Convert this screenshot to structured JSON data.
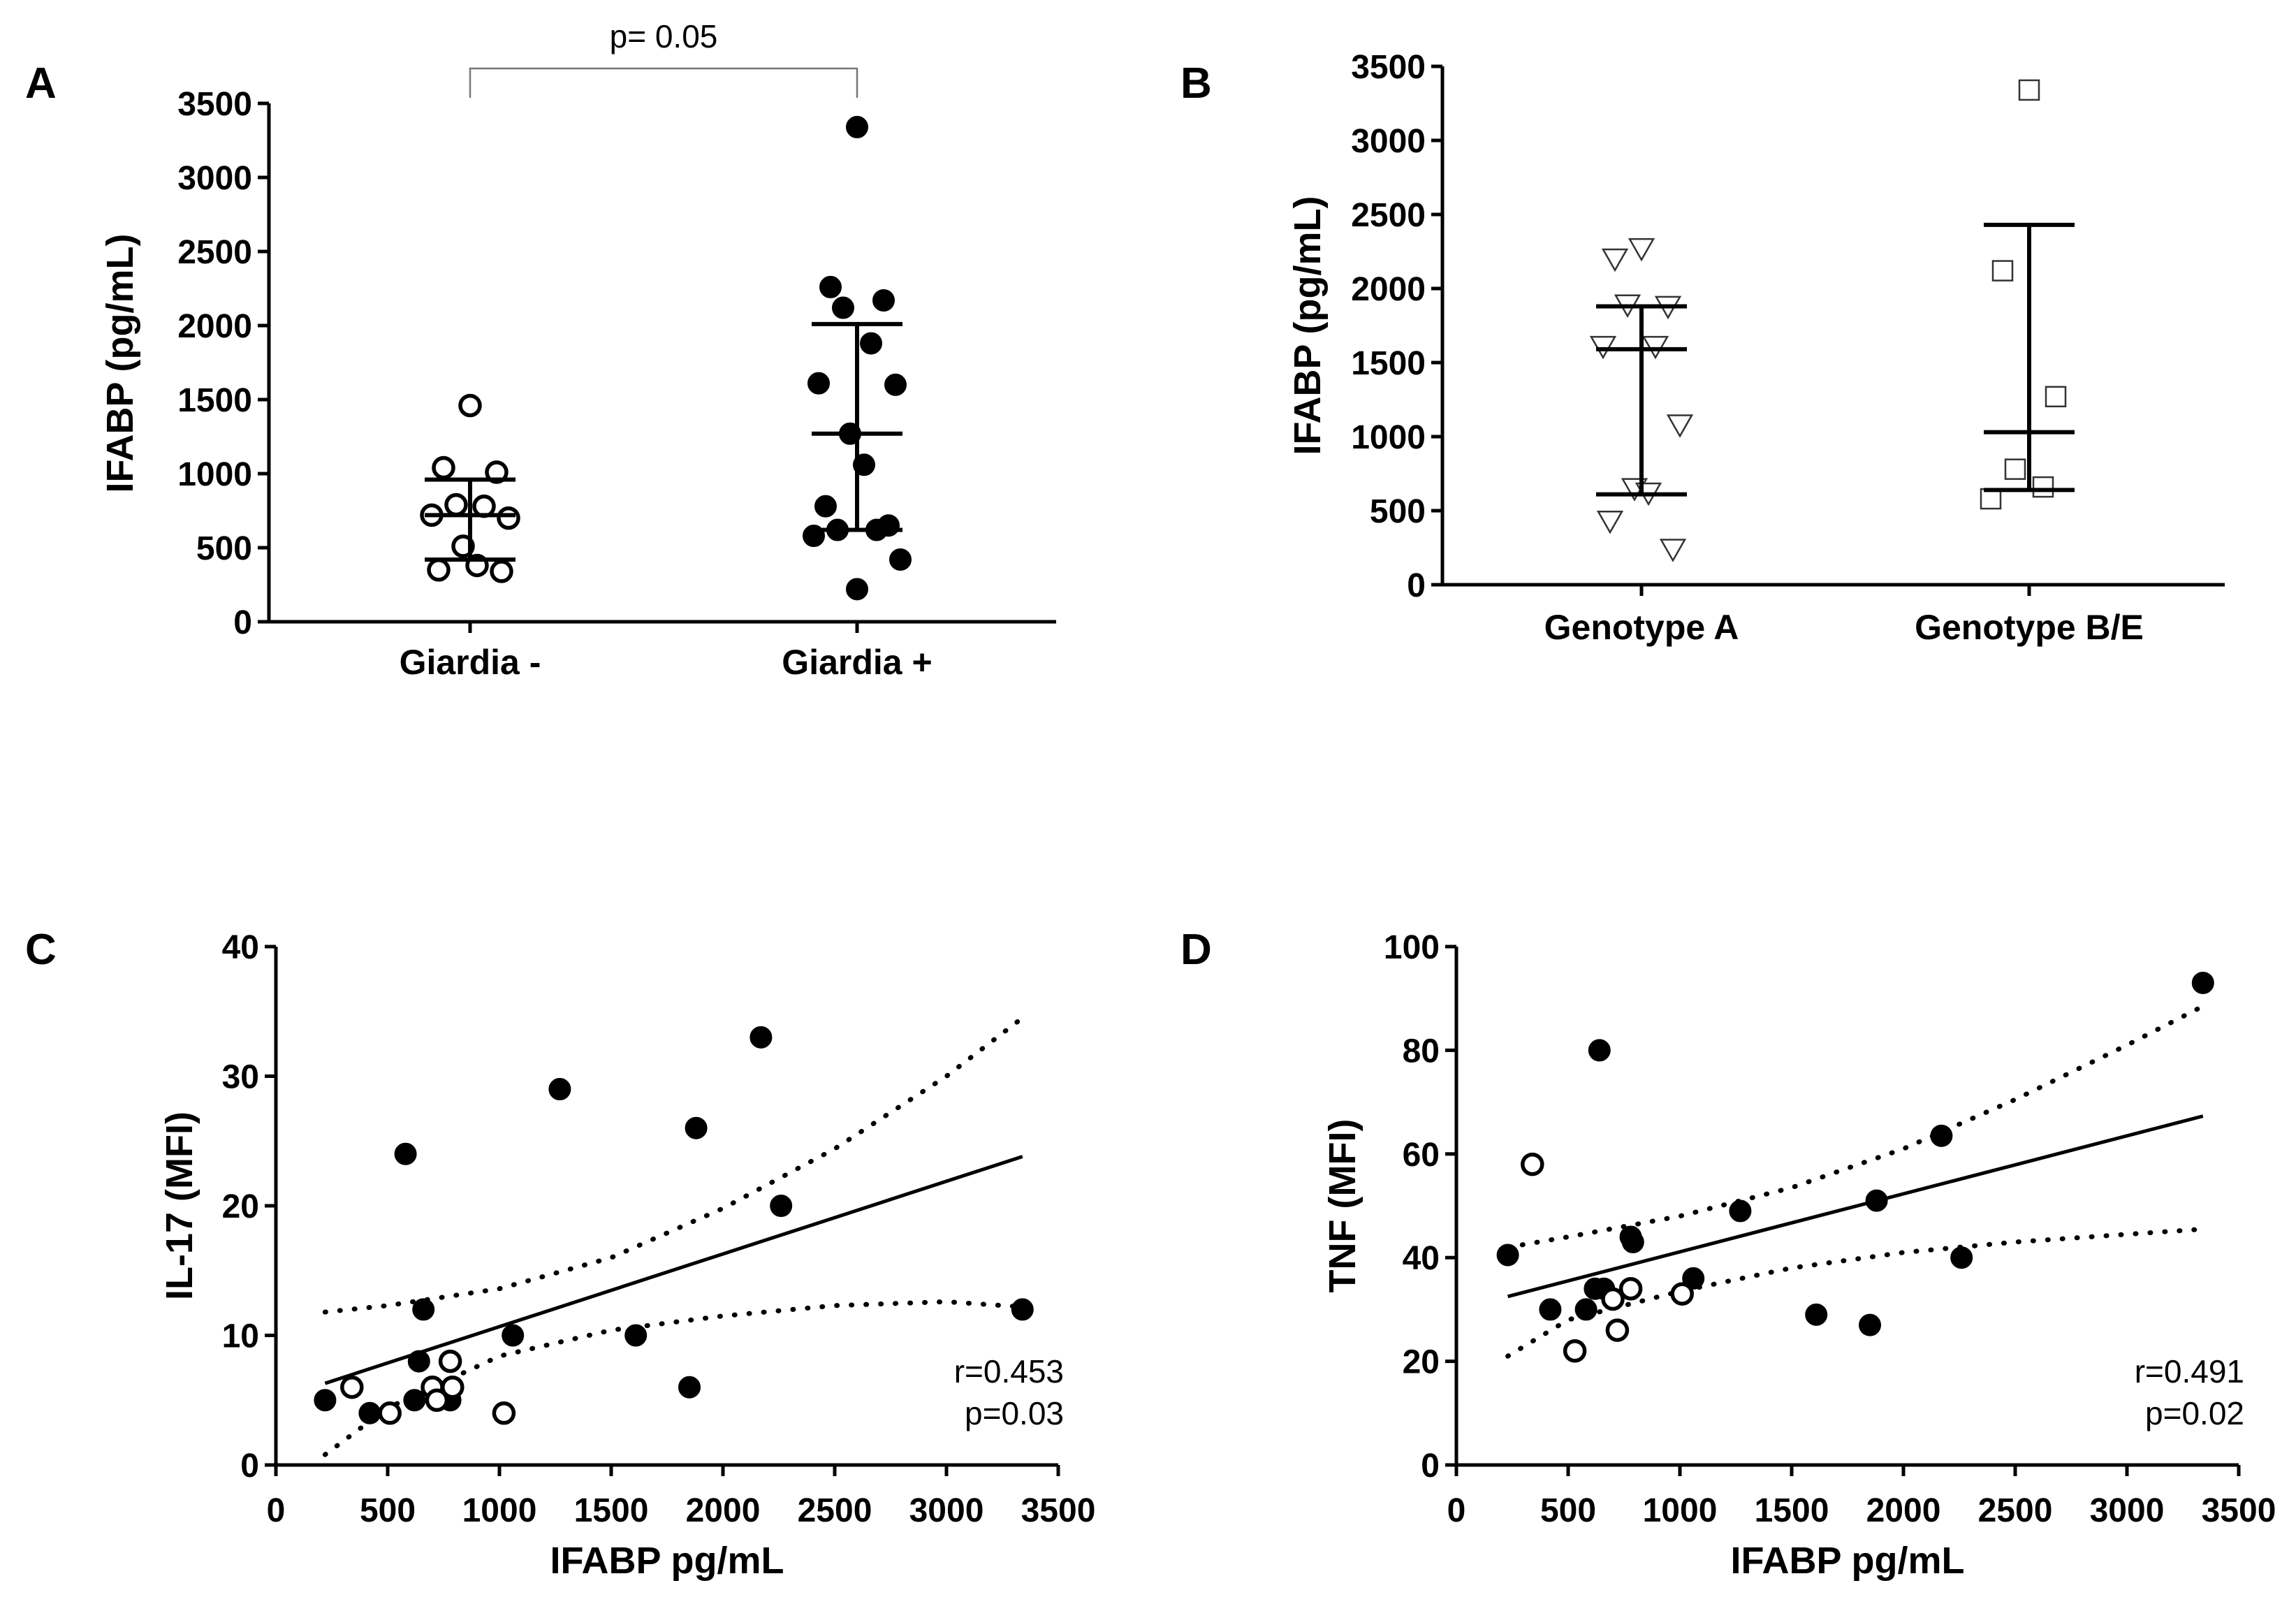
{
  "chart_data": [
    {
      "id": "A",
      "panel_label": "A",
      "type": "scatter",
      "subtype": "dot-plot",
      "ylabel": "IFABP (pg/mL)",
      "ylim": [
        0,
        3500
      ],
      "yticks": [
        "0",
        "500",
        "1000",
        "1500",
        "2000",
        "2500",
        "3000",
        "3500"
      ],
      "categories": [
        "Giardia -",
        "Giardia +"
      ],
      "significance": {
        "text": "p= 0.05",
        "between": [
          "Giardia -",
          "Giardia +"
        ]
      },
      "groups": [
        {
          "name": "Giardia -",
          "marker": "open-circle",
          "values": [
            1460,
            1040,
            1010,
            790,
            780,
            720,
            700,
            510,
            380,
            350,
            340
          ],
          "median": 720,
          "iqr": [
            420,
            960
          ]
        },
        {
          "name": "Giardia +",
          "marker": "filled-circle",
          "values": [
            3340,
            2260,
            2170,
            2120,
            1880,
            1610,
            1600,
            1270,
            1060,
            780,
            650,
            620,
            620,
            580,
            420,
            220
          ],
          "median": 1270,
          "iqr": [
            620,
            2010
          ]
        }
      ]
    },
    {
      "id": "B",
      "panel_label": "B",
      "type": "scatter",
      "subtype": "dot-plot",
      "ylabel": "IFABP (pg/mL)",
      "ylim": [
        0,
        3500
      ],
      "yticks": [
        "0",
        "500",
        "1000",
        "1500",
        "2000",
        "2500",
        "3000",
        "3500"
      ],
      "categories": [
        "Genotype A",
        "Genotype  B/E"
      ],
      "groups": [
        {
          "name": "Genotype A",
          "marker": "open-triangle-down",
          "values": [
            2270,
            2200,
            1880,
            1890,
            1610,
            1610,
            1080,
            650,
            620,
            430,
            240
          ],
          "median": 1590,
          "iqr": [
            610,
            1880
          ]
        },
        {
          "name": "Genotype  B/E",
          "marker": "open-square",
          "values": [
            3340,
            2120,
            1270,
            780,
            660,
            580
          ],
          "median": 1030,
          "iqr": [
            640,
            2430
          ]
        }
      ]
    },
    {
      "id": "C",
      "panel_label": "C",
      "type": "scatter",
      "xlabel": "IFABP pg/mL",
      "ylabel": "IL-17 (MFI)",
      "xlim": [
        0,
        3500
      ],
      "ylim": [
        0,
        40
      ],
      "xticks": [
        "0",
        "500",
        "1000",
        "1500",
        "2000",
        "2500",
        "3000",
        "3500"
      ],
      "yticks": [
        "0",
        "10",
        "20",
        "30",
        "40"
      ],
      "stats": {
        "r": "r=0.453",
        "p": "p=0.03"
      },
      "series": [
        {
          "name": "Giardia +",
          "marker": "filled-circle",
          "points": [
            [
              220,
              5
            ],
            [
              420,
              4
            ],
            [
              580,
              24
            ],
            [
              620,
              5
            ],
            [
              640,
              8
            ],
            [
              660,
              12
            ],
            [
              780,
              5
            ],
            [
              1060,
              10
            ],
            [
              1270,
              29
            ],
            [
              1610,
              10
            ],
            [
              1850,
              6
            ],
            [
              1880,
              26
            ],
            [
              2170,
              33
            ],
            [
              2260,
              20
            ],
            [
              3340,
              12
            ]
          ]
        },
        {
          "name": "Giardia -",
          "marker": "open-circle",
          "points": [
            [
              340,
              6
            ],
            [
              510,
              4
            ],
            [
              700,
              6
            ],
            [
              720,
              5
            ],
            [
              780,
              8
            ],
            [
              790,
              6
            ],
            [
              1020,
              4
            ]
          ]
        }
      ],
      "regression": {
        "x": [
          220,
          3340
        ],
        "y": [
          6.3,
          23.8
        ]
      },
      "ci_upper": {
        "x": [
          220,
          500,
          1000,
          1500,
          2000,
          2500,
          3000,
          3340
        ],
        "y": [
          11.8,
          12.3,
          13.6,
          16.0,
          19.8,
          24.4,
          30.0,
          34.5
        ]
      },
      "ci_lower": {
        "x": [
          220,
          500,
          1000,
          1500,
          2000,
          2500,
          3000,
          3340
        ],
        "y": [
          0.8,
          4.4,
          8.4,
          10.4,
          11.5,
          12.3,
          12.6,
          12.2
        ]
      }
    },
    {
      "id": "D",
      "panel_label": "D",
      "type": "scatter",
      "xlabel": "IFABP pg/mL",
      "ylabel": "TNF (MFI)",
      "xlim": [
        0,
        3500
      ],
      "ylim": [
        0,
        100
      ],
      "xticks": [
        "0",
        "500",
        "1000",
        "1500",
        "2000",
        "2500",
        "3000",
        "3500"
      ],
      "yticks": [
        "0",
        "20",
        "40",
        "60",
        "80",
        "100"
      ],
      "stats": {
        "r": "r=0.491",
        "p": "p=0.02"
      },
      "series": [
        {
          "name": "Giardia +",
          "marker": "filled-circle",
          "points": [
            [
              230,
              40.5
            ],
            [
              420,
              30
            ],
            [
              580,
              30
            ],
            [
              620,
              34
            ],
            [
              640,
              80
            ],
            [
              660,
              34
            ],
            [
              780,
              44
            ],
            [
              790,
              43
            ],
            [
              1060,
              36
            ],
            [
              1270,
              49
            ],
            [
              1610,
              29
            ],
            [
              1850,
              27
            ],
            [
              1880,
              51
            ],
            [
              2170,
              63.5
            ],
            [
              2260,
              40
            ],
            [
              3340,
              93
            ]
          ]
        },
        {
          "name": "Giardia -",
          "marker": "open-circle",
          "points": [
            [
              340,
              58
            ],
            [
              530,
              22
            ],
            [
              700,
              32
            ],
            [
              720,
              26
            ],
            [
              780,
              34
            ],
            [
              1010,
              33
            ]
          ]
        }
      ],
      "regression": {
        "x": [
          230,
          3340
        ],
        "y": [
          32.5,
          67.3
        ]
      },
      "ci_upper": {
        "x": [
          230,
          500,
          1000,
          1500,
          2000,
          2500,
          3000,
          3340
        ],
        "y": [
          42.0,
          44.0,
          48.0,
          53.5,
          61.0,
          70.5,
          81.0,
          88.5
        ]
      },
      "ci_lower": {
        "x": [
          230,
          500,
          1000,
          1500,
          2000,
          2500,
          3000,
          3340
        ],
        "y": [
          21.0,
          28.0,
          33.5,
          38.0,
          41.0,
          43.0,
          44.5,
          45.5
        ]
      }
    }
  ]
}
